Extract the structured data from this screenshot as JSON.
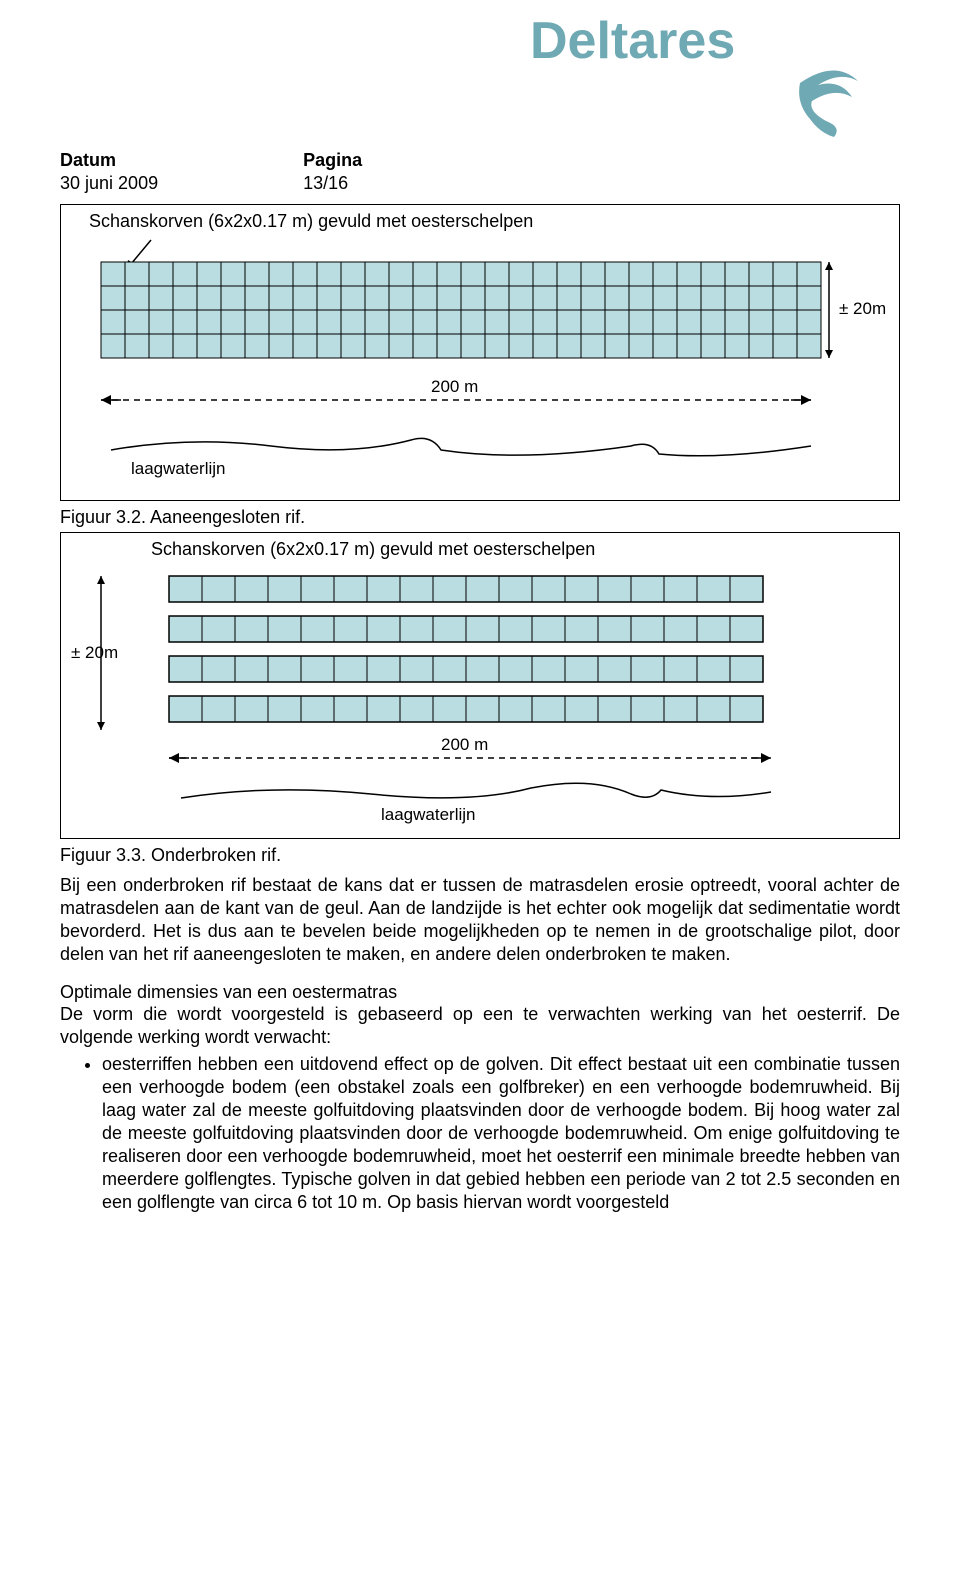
{
  "logo": {
    "text": "Deltares",
    "color": "#6fa9b4",
    "fontsize": 48
  },
  "header": {
    "datum_label": "Datum",
    "datum_value": "30 juni 2009",
    "pagina_label": "Pagina",
    "pagina_value": "13/16"
  },
  "figure1": {
    "title": "Schanskorven (6x2x0.17 m) gevuld met oesterschelpen",
    "height_label": "± 20m",
    "width_label": "200 m",
    "waterline_label": "laagwaterlijn",
    "caption": "Figuur 3.2. Aaneengesloten rif.",
    "grid": {
      "cols": 30,
      "rows": 4,
      "cell_fill": "#b9dde1",
      "cell_stroke": "#000000",
      "arrow_stroke": "#000000"
    }
  },
  "figure2": {
    "title": "Schanskorven (6x2x0.17 m) gevuld met oesterschelpen",
    "height_label": "± 20m",
    "width_label": "200 m",
    "waterline_label": "laagwaterlijn",
    "caption": "Figuur 3.3. Onderbroken rif.",
    "strips": {
      "count": 4,
      "cols": 18,
      "cell_fill": "#b9dde1",
      "cell_stroke": "#000000"
    }
  },
  "paragraph1": "Bij een onderbroken rif bestaat de kans dat er tussen de matrasdelen erosie optreedt, vooral achter de matrasdelen aan de kant van de geul. Aan de landzijde is het echter ook mogelijk dat sedimentatie wordt bevorderd. Het is dus aan te bevelen beide mogelijkheden op te nemen in de grootschalige pilot, door delen van het rif aaneengesloten te maken, en andere delen onderbroken te maken.",
  "heading2": "Optimale dimensies van een oestermatras",
  "paragraph2a": "De vorm die wordt voorgesteld is gebaseerd op een te verwachten werking van het oesterrif. De volgende werking wordt verwacht:",
  "bullets": [
    "oesterriffen hebben een uitdovend effect op de golven. Dit effect bestaat uit een combinatie tussen een verhoogde bodem (een obstakel zoals een golfbreker) en een verhoogde bodemruwheid. Bij laag water zal de meeste golfuitdoving plaatsvinden door de verhoogde bodem. Bij hoog water zal de meeste golfuitdoving plaatsvinden door de verhoogde bodemruwheid. Om enige golfuitdoving te realiseren door een verhoogde bodemruwheid, moet het oesterrif een minimale breedte hebben van meerdere golflengtes. Typische golven in dat gebied hebben een periode van 2 tot 2.5 seconden en een golflengte van circa 6 tot 10 m. Op basis hiervan wordt voorgesteld"
  ],
  "colors": {
    "brand": "#6fa9b4",
    "text": "#000000",
    "background": "#ffffff"
  }
}
